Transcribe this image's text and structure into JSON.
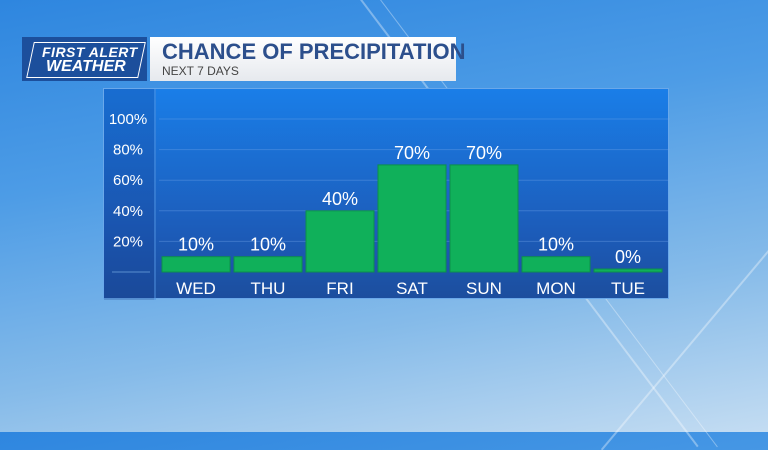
{
  "header": {
    "logo_line1": "FIRST ALERT",
    "logo_line2": "WEATHER",
    "title": "CHANCE OF PRECIPITATION",
    "subtitle": "NEXT 7 DAYS"
  },
  "chart_data": {
    "type": "bar",
    "title": "CHANCE OF PRECIPITATION",
    "subtitle": "NEXT 7 DAYS",
    "categories": [
      "WED",
      "THU",
      "FRI",
      "SAT",
      "SUN",
      "MON",
      "TUE"
    ],
    "values": [
      10,
      10,
      40,
      70,
      70,
      10,
      0
    ],
    "value_labels": [
      "10%",
      "10%",
      "40%",
      "70%",
      "70%",
      "10%",
      "0%"
    ],
    "yticks": [
      "20%",
      "40%",
      "60%",
      "80%",
      "100%"
    ],
    "ylim": [
      0,
      100
    ],
    "grid": true,
    "bar_color": "#10b05a"
  }
}
